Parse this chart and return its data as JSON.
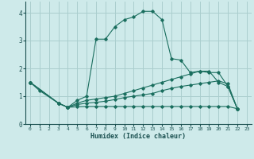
{
  "xlabel": "Humidex (Indice chaleur)",
  "bg_color": "#ceeaea",
  "grid_color": "#aacece",
  "line_color": "#1a6e5e",
  "xlim": [
    -0.5,
    23.5
  ],
  "ylim": [
    0,
    4.4
  ],
  "xticks": [
    0,
    1,
    2,
    3,
    4,
    5,
    6,
    7,
    8,
    9,
    10,
    11,
    12,
    13,
    14,
    15,
    16,
    17,
    18,
    19,
    20,
    21,
    22,
    23
  ],
  "yticks": [
    0,
    1,
    2,
    3,
    4
  ],
  "series": [
    {
      "x": [
        0,
        1,
        3,
        4,
        5,
        6,
        7,
        8,
        9,
        10,
        11,
        12,
        13,
        14,
        15,
        16,
        17,
        18,
        19,
        20,
        21,
        22
      ],
      "y": [
        1.5,
        1.2,
        0.75,
        0.6,
        0.85,
        1.0,
        3.05,
        3.05,
        3.5,
        3.75,
        3.85,
        4.05,
        4.05,
        3.75,
        2.35,
        2.3,
        1.85,
        1.9,
        1.9,
        1.5,
        1.35,
        0.55
      ]
    },
    {
      "x": [
        0,
        3,
        4,
        5,
        6,
        7,
        8,
        9,
        10,
        11,
        12,
        13,
        14,
        15,
        16,
        17,
        18,
        19,
        20,
        21,
        22
      ],
      "y": [
        1.5,
        0.75,
        0.6,
        0.75,
        0.85,
        0.9,
        0.95,
        1.0,
        1.1,
        1.2,
        1.3,
        1.4,
        1.5,
        1.6,
        1.7,
        1.8,
        1.9,
        1.85,
        1.85,
        1.35,
        0.55
      ]
    },
    {
      "x": [
        0,
        3,
        4,
        5,
        6,
        7,
        8,
        9,
        10,
        11,
        12,
        13,
        14,
        15,
        16,
        17,
        18,
        19,
        20,
        21,
        22
      ],
      "y": [
        1.5,
        0.75,
        0.6,
        0.7,
        0.75,
        0.78,
        0.82,
        0.88,
        0.95,
        1.0,
        1.05,
        1.1,
        1.2,
        1.28,
        1.35,
        1.4,
        1.45,
        1.5,
        1.55,
        1.45,
        0.55
      ]
    },
    {
      "x": [
        0,
        3,
        4,
        5,
        6,
        7,
        8,
        9,
        10,
        11,
        12,
        13,
        14,
        15,
        16,
        17,
        18,
        19,
        20,
        21,
        22
      ],
      "y": [
        1.5,
        0.75,
        0.6,
        0.62,
        0.63,
        0.63,
        0.63,
        0.63,
        0.63,
        0.63,
        0.63,
        0.63,
        0.63,
        0.63,
        0.63,
        0.63,
        0.63,
        0.63,
        0.63,
        0.63,
        0.55
      ]
    }
  ]
}
